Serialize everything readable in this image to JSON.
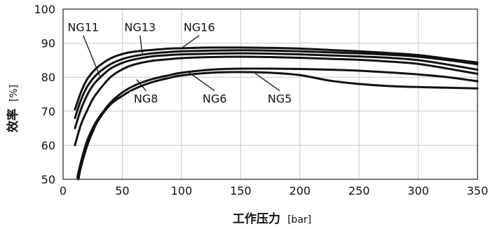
{
  "chart_data": {
    "type": "line",
    "xlabel": "工作压力",
    "xlabel_unit": "[bar]",
    "ylabel": "效率",
    "ylabel_unit": "[%]",
    "xlim": [
      0,
      350
    ],
    "ylim": [
      50,
      100
    ],
    "x_ticks": [
      0,
      50,
      100,
      150,
      200,
      250,
      300,
      350
    ],
    "y_ticks": [
      50,
      60,
      70,
      80,
      90,
      100
    ],
    "grid": true,
    "series": [
      {
        "name": "NG16",
        "x": [
          10,
          15,
          20,
          25,
          30,
          40,
          50,
          60,
          75,
          90,
          100,
          125,
          150,
          175,
          200,
          225,
          250,
          275,
          300,
          325,
          350
        ],
        "y": [
          70.5,
          75.5,
          79.2,
          81.5,
          83.2,
          85.5,
          86.8,
          87.5,
          88.0,
          88.4,
          88.5,
          88.7,
          88.7,
          88.6,
          88.4,
          88.0,
          87.6,
          87.1,
          86.5,
          85.4,
          84.3
        ]
      },
      {
        "name": "NG13",
        "x": [
          10,
          15,
          20,
          25,
          30,
          40,
          50,
          60,
          75,
          90,
          100,
          125,
          150,
          175,
          200,
          225,
          250,
          275,
          300,
          325,
          350
        ],
        "y": [
          68.0,
          73.2,
          77.0,
          79.5,
          81.3,
          83.8,
          85.3,
          86.2,
          87.0,
          87.4,
          87.6,
          87.8,
          87.9,
          87.8,
          87.6,
          87.3,
          87.0,
          86.6,
          86.0,
          85.0,
          83.8
        ]
      },
      {
        "name": "NG11",
        "x": [
          10,
          15,
          20,
          25,
          30,
          40,
          50,
          60,
          75,
          90,
          100,
          125,
          150,
          175,
          200,
          225,
          250,
          275,
          300,
          325,
          350
        ],
        "y": [
          65.0,
          70.5,
          74.5,
          77.5,
          79.5,
          82.5,
          84.2,
          85.2,
          86.1,
          86.5,
          86.7,
          86.9,
          87.0,
          86.9,
          86.7,
          86.4,
          86.1,
          85.7,
          85.0,
          83.7,
          82.2
        ]
      },
      {
        "name": "NG8",
        "x": [
          10,
          15,
          20,
          25,
          30,
          40,
          50,
          60,
          75,
          90,
          100,
          125,
          150,
          175,
          200,
          225,
          250,
          275,
          300,
          325,
          350
        ],
        "y": [
          60.0,
          66.0,
          70.0,
          73.5,
          76.0,
          80.0,
          82.3,
          83.7,
          84.8,
          85.3,
          85.6,
          85.9,
          86.0,
          85.9,
          85.7,
          85.4,
          85.1,
          84.6,
          83.9,
          82.5,
          81.0
        ]
      },
      {
        "name": "NG6",
        "x": [
          12,
          15,
          20,
          25,
          30,
          40,
          50,
          60,
          75,
          90,
          100,
          125,
          150,
          175,
          200,
          225,
          250,
          275,
          300,
          325,
          350
        ],
        "y": [
          50.5,
          55.0,
          61.0,
          65.0,
          68.0,
          72.5,
          75.5,
          77.5,
          79.4,
          80.6,
          81.3,
          82.2,
          82.5,
          82.5,
          82.4,
          82.2,
          81.9,
          81.4,
          80.8,
          80.0,
          78.8
        ]
      },
      {
        "name": "NG5",
        "x": [
          13,
          15,
          20,
          25,
          30,
          40,
          50,
          60,
          75,
          90,
          100,
          125,
          150,
          175,
          200,
          225,
          250,
          275,
          300,
          325,
          350
        ],
        "y": [
          50.0,
          53.5,
          59.5,
          64.0,
          67.5,
          72.0,
          74.5,
          76.5,
          78.5,
          79.8,
          80.5,
          81.3,
          81.5,
          81.3,
          80.6,
          79.0,
          78.0,
          77.4,
          77.1,
          76.9,
          76.7
        ]
      }
    ],
    "series_labels": [
      {
        "name": "NG11",
        "at": [
          17,
          93.5
        ],
        "leader_to": [
          31,
          80.3
        ]
      },
      {
        "name": "NG13",
        "at": [
          65,
          93.5
        ],
        "leader_to": [
          67,
          86.4
        ]
      },
      {
        "name": "NG16",
        "at": [
          115,
          93.5
        ],
        "leader_to": [
          100,
          88.5
        ]
      },
      {
        "name": "NG8",
        "at": [
          70,
          72.5
        ],
        "leader_to": [
          62,
          79.3
        ]
      },
      {
        "name": "NG6",
        "at": [
          128,
          72.5
        ],
        "leader_to": [
          105,
          81.7
        ]
      },
      {
        "name": "NG5",
        "at": [
          183,
          72.5
        ],
        "leader_to": [
          162,
          81.2
        ]
      }
    ]
  }
}
